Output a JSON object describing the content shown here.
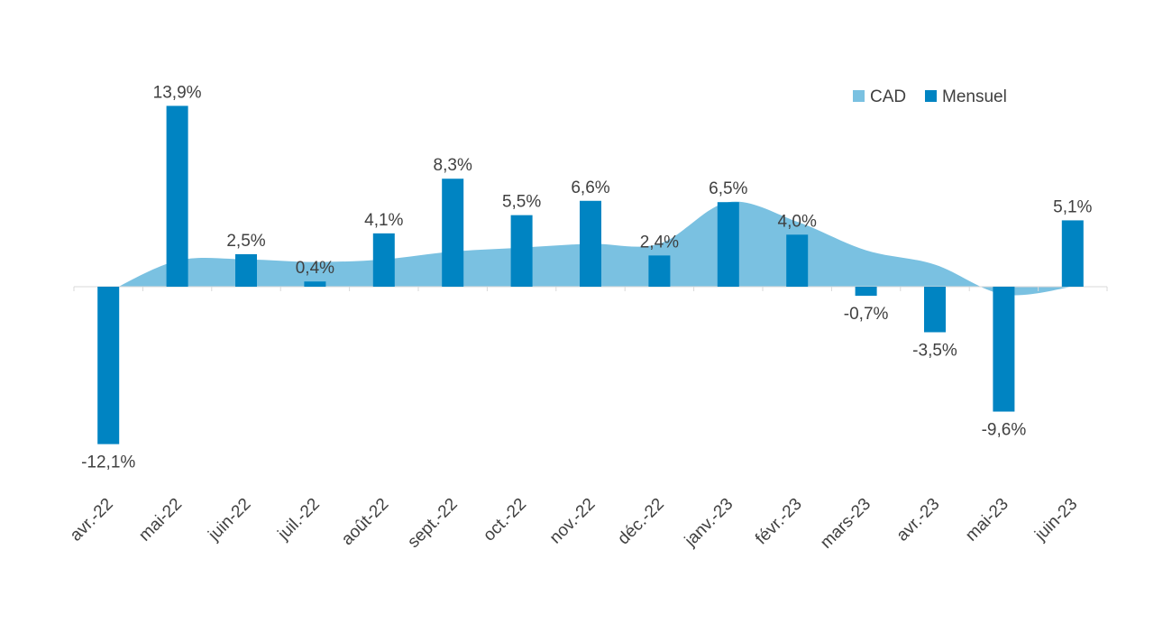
{
  "chart_data": {
    "type": "bar",
    "categories": [
      "avr.-22",
      "mai-22",
      "juin-22",
      "juil.-22",
      "août-22",
      "sept.-22",
      "oct.-22",
      "nov.-22",
      "déc.-22",
      "janv.-23",
      "févr.-23",
      "mars-23",
      "avr.-23",
      "mai-23",
      "juin-23"
    ],
    "series": [
      {
        "name": "Mensuel",
        "type": "bar",
        "color": "#0084C2",
        "values": [
          -12.1,
          13.9,
          2.5,
          0.4,
          4.1,
          8.3,
          5.5,
          6.6,
          2.4,
          6.5,
          4.0,
          -0.7,
          -3.5,
          -9.6,
          5.1
        ],
        "labels": [
          "-12,1%",
          "13,9%",
          "2,5%",
          "0,4%",
          "4,1%",
          "8,3%",
          "5,5%",
          "6,6%",
          "2,4%",
          "6,5%",
          "4,0%",
          "-0,7%",
          "-3,5%",
          "-9,6%",
          "5,1%"
        ]
      },
      {
        "name": "CAD",
        "type": "area",
        "color": "#7AC1E1",
        "values": [
          -0.4,
          2.0,
          2.1,
          1.9,
          2.1,
          2.7,
          3.0,
          3.3,
          3.3,
          6.5,
          5.0,
          2.8,
          1.7,
          -0.6,
          0.0
        ]
      }
    ],
    "legend": {
      "position": "top-right",
      "items": [
        "CAD",
        "Mensuel"
      ]
    },
    "ylim": [
      -15,
      16
    ],
    "grid": false,
    "title": "",
    "xlabel": "",
    "ylabel": ""
  }
}
